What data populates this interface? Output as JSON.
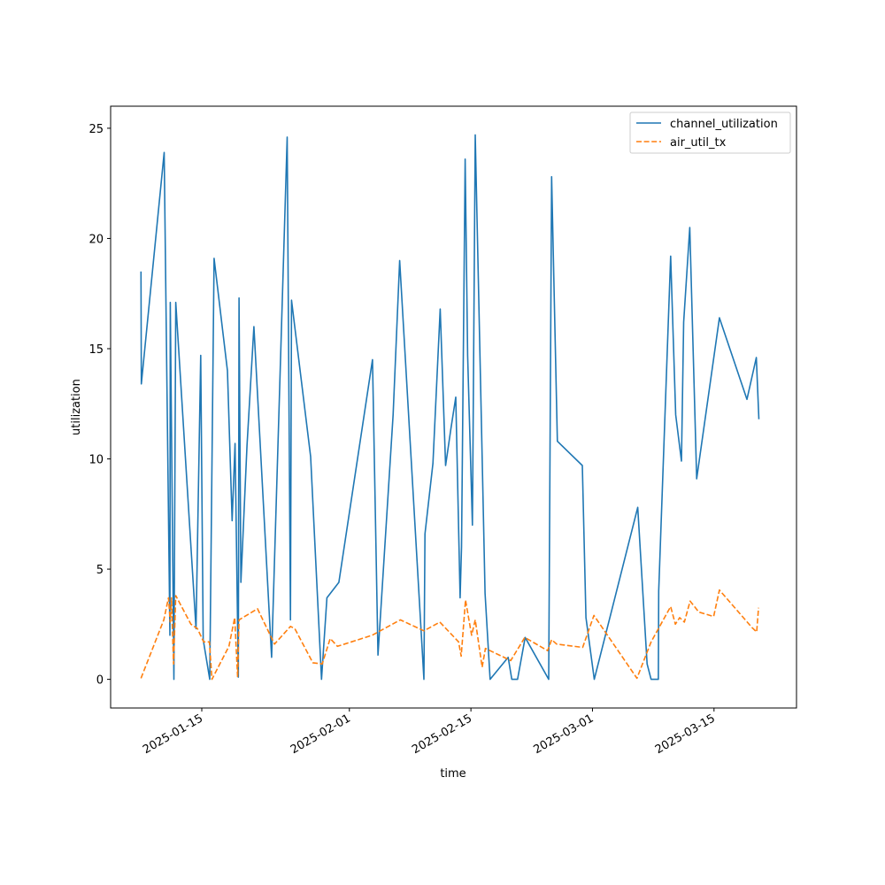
{
  "chart_data": {
    "type": "line",
    "xlabel": "time",
    "ylabel": "utilization",
    "x_tick_labels": [
      "2025-01-15",
      "2025-02-01",
      "2025-02-15",
      "2025-03-01",
      "2025-03-15"
    ],
    "x_ticks": [
      "2025-01-15",
      "2025-02-01",
      "2025-02-15",
      "2025-03-01",
      "2025-03-15"
    ],
    "y_ticks": [
      0,
      5,
      10,
      15,
      20,
      25
    ],
    "xlim": [
      "2025-01-04 12:00",
      "2025-03-24 12:00"
    ],
    "ylim": [
      -1.3,
      26.0
    ],
    "grid": false,
    "legend_position": "top-right",
    "series": [
      {
        "name": "channel_utilization",
        "color": "#1f77b4",
        "dash": "solid",
        "points": [
          [
            "2025-01-08 00:00",
            18.5
          ],
          [
            "2025-01-08 01:00",
            13.4
          ],
          [
            "2025-01-10 16:00",
            23.9
          ],
          [
            "2025-01-11 08:00",
            2.0
          ],
          [
            "2025-01-11 09:00",
            17.1
          ],
          [
            "2025-01-11 19:00",
            0.0
          ],
          [
            "2025-01-12 00:00",
            17.1
          ],
          [
            "2025-01-14 08:00",
            2.3
          ],
          [
            "2025-01-14 21:00",
            14.7
          ],
          [
            "2025-01-15 04:00",
            1.8
          ],
          [
            "2025-01-15 22:00",
            0.0
          ],
          [
            "2025-01-16 10:00",
            19.1
          ],
          [
            "2025-01-17 23:00",
            14.0
          ],
          [
            "2025-01-18 12:00",
            7.2
          ],
          [
            "2025-01-18 20:00",
            10.7
          ],
          [
            "2025-01-19 05:00",
            0.1
          ],
          [
            "2025-01-19 07:00",
            17.3
          ],
          [
            "2025-01-19 12:00",
            4.4
          ],
          [
            "2025-01-20 05:00",
            10.6
          ],
          [
            "2025-01-21 00:00",
            16.0
          ],
          [
            "2025-01-23 01:00",
            1.0
          ],
          [
            "2025-01-24 20:00",
            24.6
          ],
          [
            "2025-01-25 05:00",
            2.7
          ],
          [
            "2025-01-25 08:00",
            17.2
          ],
          [
            "2025-01-27 13:00",
            10.1
          ],
          [
            "2025-01-28 19:00",
            0.0
          ],
          [
            "2025-01-29 10:00",
            3.7
          ],
          [
            "2025-01-30 19:00",
            4.4
          ],
          [
            "2025-02-03 16:00",
            14.5
          ],
          [
            "2025-02-04 07:00",
            1.1
          ],
          [
            "2025-02-06 01:00",
            12.0
          ],
          [
            "2025-02-06 19:00",
            19.0
          ],
          [
            "2025-02-09 14:00",
            0.0
          ],
          [
            "2025-02-09 17:00",
            6.6
          ],
          [
            "2025-02-10 15:00",
            9.8
          ],
          [
            "2025-02-11 11:00",
            16.8
          ],
          [
            "2025-02-12 02:00",
            9.7
          ],
          [
            "2025-02-12 17:00",
            11.4
          ],
          [
            "2025-02-13 06:00",
            12.8
          ],
          [
            "2025-02-13 18:00",
            3.7
          ],
          [
            "2025-02-13 22:00",
            6.0
          ],
          [
            "2025-02-14 08:00",
            23.6
          ],
          [
            "2025-02-14 15:00",
            14.7
          ],
          [
            "2025-02-15 04:00",
            7.0
          ],
          [
            "2025-02-15 12:00",
            24.7
          ],
          [
            "2025-02-16 15:00",
            3.9
          ],
          [
            "2025-02-17 05:00",
            0.0
          ],
          [
            "2025-02-19 07:00",
            1.0
          ],
          [
            "2025-02-19 17:00",
            0.0
          ],
          [
            "2025-02-20 09:00",
            0.0
          ],
          [
            "2025-02-21 06:00",
            1.9
          ],
          [
            "2025-02-23 23:00",
            0.0
          ],
          [
            "2025-02-24 07:00",
            22.8
          ],
          [
            "2025-02-24 23:00",
            10.8
          ],
          [
            "2025-02-27 20:00",
            9.7
          ],
          [
            "2025-02-28 06:00",
            2.8
          ],
          [
            "2025-02-29 05:00",
            0.0
          ],
          [
            "2025-03-06 05:00",
            7.8
          ],
          [
            "2025-03-07 07:00",
            0.7
          ],
          [
            "2025-03-07 18:00",
            0.0
          ],
          [
            "2025-03-08 14:00",
            0.0
          ],
          [
            "2025-03-08 15:00",
            4.0
          ],
          [
            "2025-03-10 00:00",
            19.2
          ],
          [
            "2025-03-10 14:00",
            12.0
          ],
          [
            "2025-03-11 06:00",
            9.9
          ],
          [
            "2025-03-11 12:00",
            16.2
          ],
          [
            "2025-03-12 05:00",
            20.5
          ],
          [
            "2025-03-13 00:00",
            9.1
          ],
          [
            "2025-03-15 15:00",
            16.4
          ],
          [
            "2025-03-18 19:00",
            12.7
          ],
          [
            "2025-03-19 21:00",
            14.6
          ],
          [
            "2025-03-20 04:00",
            11.8
          ]
        ]
      },
      {
        "name": "air_util_tx",
        "color": "#ff7f0e",
        "dash": "dashed",
        "points": [
          [
            "2025-01-08 00:00",
            0.05
          ],
          [
            "2025-01-10 15:00",
            2.7
          ],
          [
            "2025-01-11 04:00",
            3.7
          ],
          [
            "2025-01-11 09:00",
            2.6
          ],
          [
            "2025-01-11 12:00",
            3.7
          ],
          [
            "2025-01-11 18:00",
            0.7
          ],
          [
            "2025-01-12 00:00",
            3.8
          ],
          [
            "2025-01-13 18:00",
            2.5
          ],
          [
            "2025-01-14 12:00",
            2.3
          ],
          [
            "2025-01-15 05:00",
            1.7
          ],
          [
            "2025-01-15 21:00",
            1.7
          ],
          [
            "2025-01-16 04:00",
            0.0
          ],
          [
            "2025-01-17 05:00",
            0.8
          ],
          [
            "2025-01-18 03:00",
            1.5
          ],
          [
            "2025-01-18 19:00",
            2.8
          ],
          [
            "2025-01-19 03:00",
            0.1
          ],
          [
            "2025-01-19 07:00",
            2.7
          ],
          [
            "2025-01-21 10:00",
            3.2
          ],
          [
            "2025-01-23 09:00",
            1.6
          ],
          [
            "2025-01-25 05:00",
            2.4
          ],
          [
            "2025-01-25 17:00",
            2.3
          ],
          [
            "2025-01-27 19:00",
            0.75
          ],
          [
            "2025-01-28 21:00",
            0.7
          ],
          [
            "2025-01-29 19:00",
            1.85
          ],
          [
            "2025-01-30 15:00",
            1.5
          ],
          [
            "2025-02-03 15:00",
            2.0
          ],
          [
            "2025-02-06 21:00",
            2.7
          ],
          [
            "2025-02-09 14:00",
            2.2
          ],
          [
            "2025-02-11 10:00",
            2.6
          ],
          [
            "2025-02-13 14:00",
            1.7
          ],
          [
            "2025-02-13 21:00",
            1.05
          ],
          [
            "2025-02-14 09:00",
            3.6
          ],
          [
            "2025-02-15 02:00",
            2.0
          ],
          [
            "2025-02-15 12:00",
            2.7
          ],
          [
            "2025-02-16 07:00",
            0.55
          ],
          [
            "2025-02-16 16:00",
            1.4
          ],
          [
            "2025-02-19 14:00",
            0.85
          ],
          [
            "2025-02-21 05:00",
            1.9
          ],
          [
            "2025-02-23 20:00",
            1.3
          ],
          [
            "2025-02-24 07:00",
            1.8
          ],
          [
            "2025-02-24 21:00",
            1.6
          ],
          [
            "2025-02-27 21:00",
            1.45
          ],
          [
            "2025-02-29 04:00",
            2.9
          ],
          [
            "2025-03-06 03:00",
            0.05
          ],
          [
            "2025-03-07 18:00",
            1.7
          ],
          [
            "2025-03-10 00:00",
            3.3
          ],
          [
            "2025-03-10 13:00",
            2.5
          ],
          [
            "2025-03-11 01:00",
            2.8
          ],
          [
            "2025-03-11 14:00",
            2.6
          ],
          [
            "2025-03-12 06:00",
            3.55
          ],
          [
            "2025-03-13 06:00",
            3.05
          ],
          [
            "2025-03-14 23:00",
            2.85
          ],
          [
            "2025-03-15 15:00",
            4.05
          ],
          [
            "2025-03-19 09:00",
            2.35
          ],
          [
            "2025-03-19 22:00",
            2.15
          ],
          [
            "2025-03-20 03:00",
            3.25
          ]
        ]
      }
    ]
  }
}
